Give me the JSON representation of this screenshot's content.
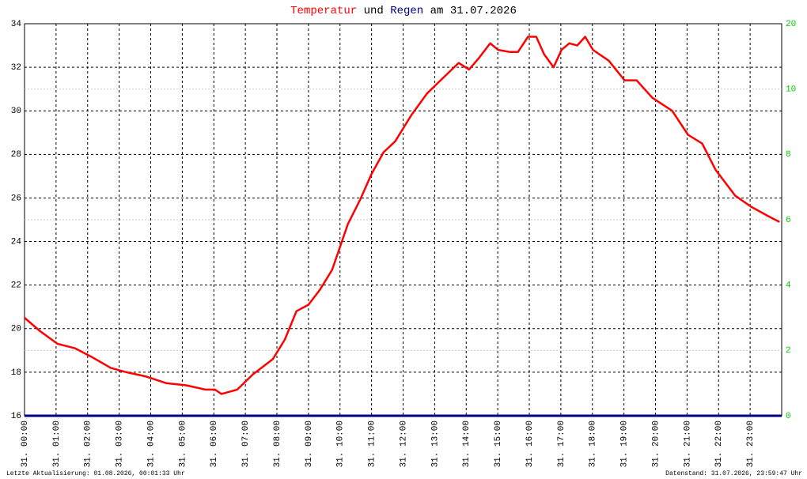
{
  "chart_data": {
    "type": "line",
    "title_parts": [
      {
        "text": "Temperatur",
        "color": "#ff0000"
      },
      {
        "text": "und",
        "color": "#000000"
      },
      {
        "text": "Regen",
        "color": "#000080"
      },
      {
        "text": "am 31.07.2026",
        "color": "#000000"
      }
    ],
    "xlim": [
      0,
      24
    ],
    "xticks": [
      {
        "value": 0,
        "label": "31. 00:00"
      },
      {
        "value": 1,
        "label": "31. 01:00"
      },
      {
        "value": 2,
        "label": "31. 02:00"
      },
      {
        "value": 3,
        "label": "31. 03:00"
      },
      {
        "value": 4,
        "label": "31. 04:00"
      },
      {
        "value": 5,
        "label": "31. 05:00"
      },
      {
        "value": 6,
        "label": "31. 06:00"
      },
      {
        "value": 7,
        "label": "31. 07:00"
      },
      {
        "value": 8,
        "label": "31. 08:00"
      },
      {
        "value": 9,
        "label": "31. 09:00"
      },
      {
        "value": 10,
        "label": "31. 10:00"
      },
      {
        "value": 11,
        "label": "31. 11:00"
      },
      {
        "value": 12,
        "label": "31. 12:00"
      },
      {
        "value": 13,
        "label": "31. 13:00"
      },
      {
        "value": 14,
        "label": "31. 14:00"
      },
      {
        "value": 15,
        "label": "31. 15:00"
      },
      {
        "value": 16,
        "label": "31. 16:00"
      },
      {
        "value": 17,
        "label": "31. 17:00"
      },
      {
        "value": 18,
        "label": "31. 18:00"
      },
      {
        "value": 19,
        "label": "31. 19:00"
      },
      {
        "value": 20,
        "label": "31. 20:00"
      },
      {
        "value": 21,
        "label": "31. 21:00"
      },
      {
        "value": 22,
        "label": "31. 22:00"
      },
      {
        "value": 23,
        "label": "31. 23:00"
      }
    ],
    "ylim": [
      16,
      34
    ],
    "yticks": [
      16,
      18,
      20,
      22,
      24,
      26,
      28,
      30,
      32,
      34
    ],
    "y2lim": [
      0,
      12
    ],
    "y2ticks": [
      0,
      2,
      4,
      6,
      8,
      10
    ],
    "y2_top_label": "20",
    "y2_color": "#00cc00",
    "grid": true,
    "series": [
      {
        "name": "Temperatur",
        "color": "#ff0000",
        "x": [
          0,
          0.48,
          1.05,
          1.6,
          2.13,
          2.73,
          3.23,
          3.86,
          4.49,
          5.11,
          5.74,
          6.04,
          6.24,
          6.74,
          7.24,
          7.87,
          8.25,
          8.62,
          9.0,
          9.37,
          9.75,
          10.25,
          10.63,
          11.0,
          11.38,
          11.75,
          12.26,
          12.76,
          13.26,
          13.76,
          14.09,
          14.39,
          14.76,
          15.01,
          15.39,
          15.64,
          15.96,
          16.22,
          16.47,
          16.77,
          17.02,
          17.27,
          17.52,
          17.77,
          18.02,
          18.52,
          19.02,
          19.4,
          19.9,
          20.53,
          21.03,
          21.48,
          21.9,
          22.53,
          23.03,
          23.53,
          23.93
        ],
        "values": [
          20.5,
          19.9,
          19.3,
          19.1,
          18.7,
          18.2,
          18.0,
          17.8,
          17.5,
          17.4,
          17.2,
          17.2,
          17.0,
          17.2,
          17.9,
          18.6,
          19.5,
          20.8,
          21.1,
          21.8,
          22.7,
          24.8,
          25.9,
          27.1,
          28.1,
          28.6,
          29.8,
          30.8,
          31.5,
          32.2,
          31.9,
          32.4,
          33.1,
          32.8,
          32.7,
          32.7,
          33.4,
          33.4,
          32.6,
          32.0,
          32.8,
          33.1,
          33.0,
          33.4,
          32.8,
          32.3,
          31.4,
          31.4,
          30.6,
          30.0,
          28.9,
          28.5,
          27.3,
          26.1,
          25.6,
          25.2,
          24.9
        ]
      },
      {
        "name": "Regen",
        "color": "#000080",
        "axis": "y2",
        "x": [
          0,
          24
        ],
        "values": [
          0,
          0
        ]
      }
    ],
    "footer_left": "Letzte Aktualisierung: 01.08.2026, 00:01:33 Uhr",
    "footer_right": "Datenstand: 31.07.2026, 23:59:47 Uhr"
  }
}
